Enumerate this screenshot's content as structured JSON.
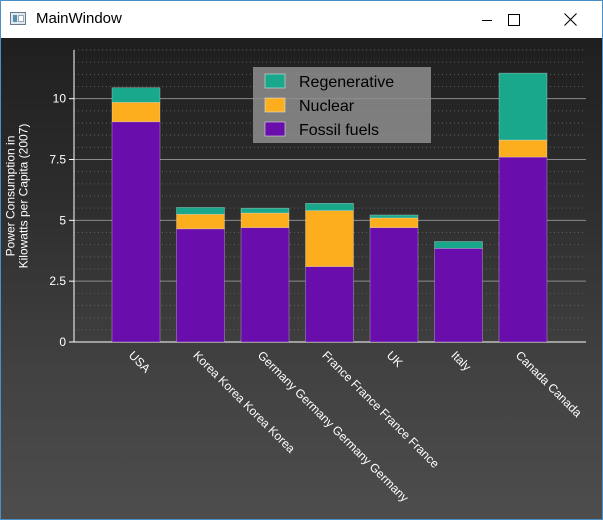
{
  "window": {
    "title": "MainWindow"
  },
  "colors": {
    "regenerative": "#1aa88c",
    "nuclear": "#fcae1e",
    "fossil": "#6a0dad",
    "axis": "#ffffff",
    "grid_major": "#8a8a8a",
    "grid_minor": "#5e5e5e",
    "legend_bg": "#8e8e8e"
  },
  "chart_data": {
    "type": "bar",
    "stacked": true,
    "ylabel": "Power Consumption in\nKilowatts per Capita (2007)",
    "xlabel": "",
    "ylim": [
      0,
      12
    ],
    "yticks": [
      "0",
      "2.5",
      "5",
      "7.5",
      "10"
    ],
    "grid": true,
    "legend_position": "top",
    "categories": [
      "USA",
      "Korea Korea Korea Korea",
      "Germany Germany Germany Germany",
      "France France France France",
      "UK",
      "Italy",
      "Canada Canada"
    ],
    "series": [
      {
        "name": "Fossil fuels",
        "color_key": "fossil",
        "values": [
          9.05,
          4.65,
          4.7,
          3.1,
          4.7,
          3.85,
          7.6
        ]
      },
      {
        "name": "Nuclear",
        "color_key": "nuclear",
        "values": [
          0.8,
          0.6,
          0.6,
          2.3,
          0.4,
          0.0,
          0.7
        ]
      },
      {
        "name": "Regenerative",
        "color_key": "regenerative",
        "values": [
          0.6,
          0.28,
          0.2,
          0.3,
          0.12,
          0.28,
          2.75
        ]
      }
    ],
    "legend_order": [
      "Regenerative",
      "Nuclear",
      "Fossil fuels"
    ]
  }
}
